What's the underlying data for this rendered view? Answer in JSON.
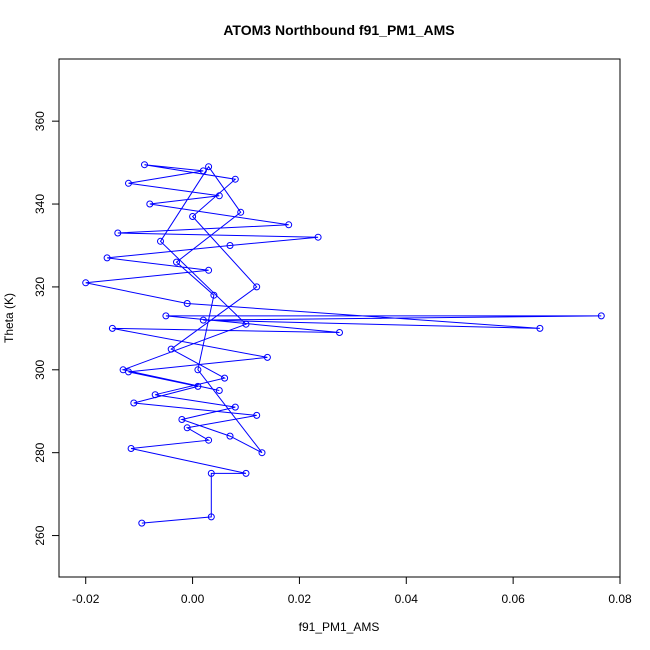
{
  "chart_data": {
    "type": "scatter",
    "title": "ATOM3 Northbound f91_PM1_AMS",
    "xlabel": "f91_PM1_AMS",
    "ylabel": "Theta (K)",
    "xlim": [
      -0.025,
      0.08
    ],
    "ylim": [
      250,
      375
    ],
    "xticks": [
      -0.02,
      0.0,
      0.02,
      0.04,
      0.06,
      0.08
    ],
    "xtick_labels": [
      "-0.02",
      "0.00",
      "0.02",
      "0.04",
      "0.06",
      "0.08"
    ],
    "yticks": [
      260,
      280,
      300,
      320,
      340,
      360
    ],
    "ytick_labels": [
      "260",
      "280",
      "300",
      "320",
      "340",
      "360"
    ],
    "grid": false,
    "legend": "none",
    "color": "#0000ff",
    "marker": "open-circle",
    "connected": true,
    "points": [
      {
        "x": -0.0095,
        "y": 263.0
      },
      {
        "x": 0.0035,
        "y": 264.5
      },
      {
        "x": 0.0035,
        "y": 275.0
      },
      {
        "x": 0.01,
        "y": 275.0
      },
      {
        "x": -0.0115,
        "y": 281.0
      },
      {
        "x": 0.003,
        "y": 283.0
      },
      {
        "x": -0.001,
        "y": 286.0
      },
      {
        "x": 0.012,
        "y": 289.0
      },
      {
        "x": -0.011,
        "y": 292.0
      },
      {
        "x": 0.001,
        "y": 296.0
      },
      {
        "x": -0.012,
        "y": 299.5
      },
      {
        "x": 0.014,
        "y": 303.0
      },
      {
        "x": -0.015,
        "y": 310.0
      },
      {
        "x": 0.0275,
        "y": 309.0
      },
      {
        "x": -0.005,
        "y": 313.0
      },
      {
        "x": 0.0765,
        "y": 313.0
      },
      {
        "x": 0.002,
        "y": 312.0
      },
      {
        "x": 0.065,
        "y": 310.0
      },
      {
        "x": -0.001,
        "y": 316.0
      },
      {
        "x": -0.02,
        "y": 321.0
      },
      {
        "x": 0.003,
        "y": 324.0
      },
      {
        "x": -0.016,
        "y": 327.0
      },
      {
        "x": 0.007,
        "y": 330.0
      },
      {
        "x": 0.0235,
        "y": 332.0
      },
      {
        "x": -0.014,
        "y": 333.0
      },
      {
        "x": 0.018,
        "y": 335.0
      },
      {
        "x": -0.008,
        "y": 340.0
      },
      {
        "x": 0.005,
        "y": 342.0
      },
      {
        "x": -0.012,
        "y": 345.0
      },
      {
        "x": 0.002,
        "y": 348.0
      },
      {
        "x": -0.009,
        "y": 349.5
      },
      {
        "x": 0.008,
        "y": 346.0
      },
      {
        "x": 0.0,
        "y": 337.0
      },
      {
        "x": 0.012,
        "y": 320.0
      },
      {
        "x": -0.004,
        "y": 305.0
      },
      {
        "x": 0.006,
        "y": 298.0
      },
      {
        "x": -0.007,
        "y": 294.0
      },
      {
        "x": 0.008,
        "y": 291.0
      },
      {
        "x": -0.002,
        "y": 288.0
      },
      {
        "x": 0.007,
        "y": 284.0
      },
      {
        "x": 0.013,
        "y": 280.0
      },
      {
        "x": 0.001,
        "y": 300.0
      },
      {
        "x": 0.004,
        "y": 318.0
      },
      {
        "x": -0.003,
        "y": 326.0
      },
      {
        "x": 0.009,
        "y": 338.0
      },
      {
        "x": 0.003,
        "y": 349.0
      },
      {
        "x": -0.006,
        "y": 331.0
      },
      {
        "x": 0.01,
        "y": 311.0
      },
      {
        "x": -0.013,
        "y": 300.0
      },
      {
        "x": 0.005,
        "y": 295.0
      }
    ]
  }
}
